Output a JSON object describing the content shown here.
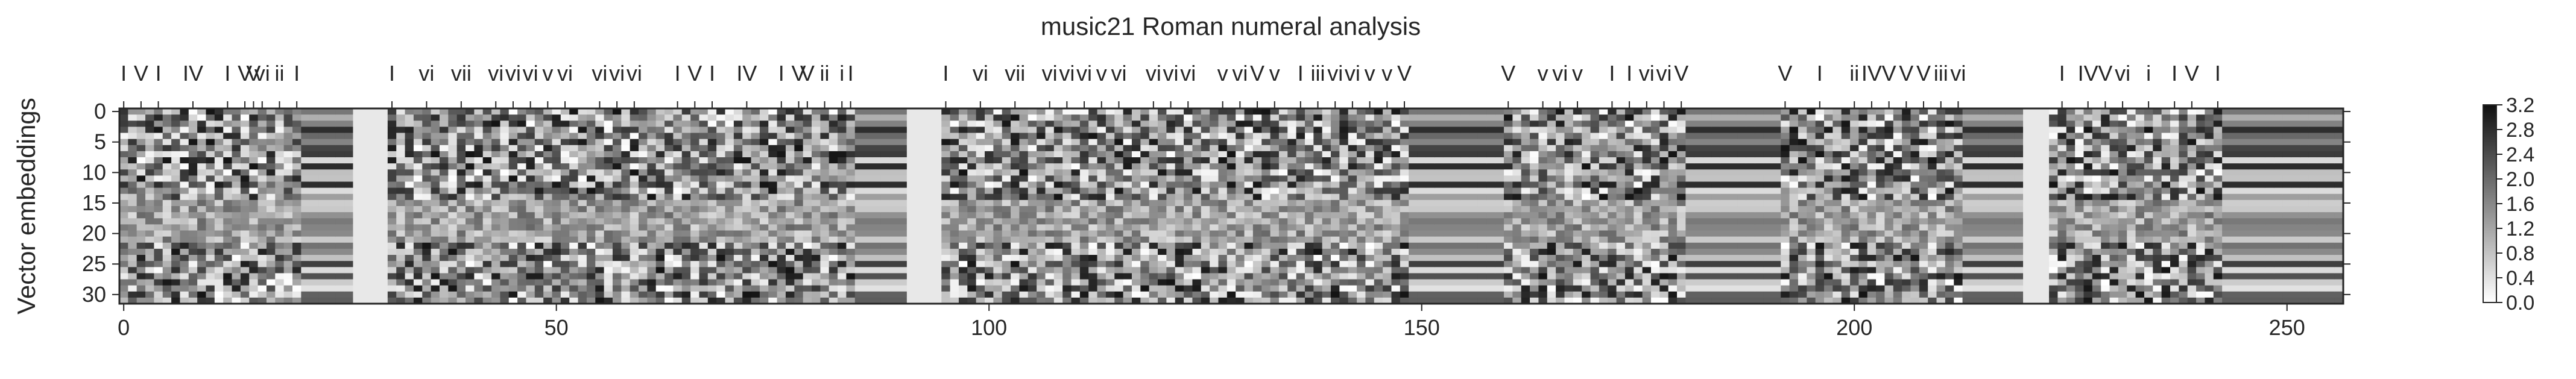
{
  "figure": {
    "title": "music21 Roman numeral analysis"
  },
  "chart_data": {
    "type": "heatmap",
    "title": "music21 Roman numeral analysis",
    "xlabel": "",
    "ylabel": "Vector embeddings",
    "x_ticks": [
      0,
      50,
      100,
      150,
      200,
      250
    ],
    "y_ticks": [
      0,
      5,
      10,
      15,
      20,
      25,
      30
    ],
    "xlim": [
      0,
      257
    ],
    "ylim": [
      0,
      32
    ],
    "rows": 32,
    "columns": 257,
    "colormap": "Greys",
    "colorbar": {
      "range": [
        0.0,
        3.2
      ],
      "ticks": [
        "0.0",
        "0.4",
        "0.8",
        "1.2",
        "1.6",
        "2.0",
        "2.4",
        "2.8",
        "3.2"
      ]
    },
    "top_labels": [
      {
        "x": 0,
        "label": "I"
      },
      {
        "x": 2,
        "label": "V"
      },
      {
        "x": 4,
        "label": "I"
      },
      {
        "x": 8,
        "label": "IV"
      },
      {
        "x": 12,
        "label": "I"
      },
      {
        "x": 14,
        "label": "V"
      },
      {
        "x": 15,
        "label": "V"
      },
      {
        "x": 16,
        "label": "vi"
      },
      {
        "x": 18,
        "label": "ii"
      },
      {
        "x": 20,
        "label": "I"
      },
      {
        "x": 31,
        "label": "I"
      },
      {
        "x": 35,
        "label": "vi"
      },
      {
        "x": 39,
        "label": "vii"
      },
      {
        "x": 43,
        "label": "vi"
      },
      {
        "x": 45,
        "label": "vi"
      },
      {
        "x": 47,
        "label": "vi"
      },
      {
        "x": 49,
        "label": "v"
      },
      {
        "x": 51,
        "label": "vi"
      },
      {
        "x": 55,
        "label": "vi"
      },
      {
        "x": 57,
        "label": "vi"
      },
      {
        "x": 59,
        "label": "vi"
      },
      {
        "x": 64,
        "label": "I"
      },
      {
        "x": 66,
        "label": "V"
      },
      {
        "x": 68,
        "label": "I"
      },
      {
        "x": 72,
        "label": "IV"
      },
      {
        "x": 76,
        "label": "I"
      },
      {
        "x": 78,
        "label": "V"
      },
      {
        "x": 79,
        "label": "V"
      },
      {
        "x": 81,
        "label": "ii"
      },
      {
        "x": 83,
        "label": "i"
      },
      {
        "x": 84,
        "label": "I"
      },
      {
        "x": 95,
        "label": "I"
      },
      {
        "x": 99,
        "label": "vi"
      },
      {
        "x": 103,
        "label": "vii"
      },
      {
        "x": 107,
        "label": "vi"
      },
      {
        "x": 109,
        "label": "vi"
      },
      {
        "x": 111,
        "label": "vi"
      },
      {
        "x": 113,
        "label": "v"
      },
      {
        "x": 115,
        "label": "vi"
      },
      {
        "x": 119,
        "label": "vi"
      },
      {
        "x": 121,
        "label": "vi"
      },
      {
        "x": 123,
        "label": "vi"
      },
      {
        "x": 127,
        "label": "v"
      },
      {
        "x": 129,
        "label": "vi"
      },
      {
        "x": 131,
        "label": "V"
      },
      {
        "x": 133,
        "label": "v"
      },
      {
        "x": 136,
        "label": "I"
      },
      {
        "x": 138,
        "label": "iii"
      },
      {
        "x": 140,
        "label": "vi"
      },
      {
        "x": 142,
        "label": "vi"
      },
      {
        "x": 144,
        "label": "v"
      },
      {
        "x": 146,
        "label": "v"
      },
      {
        "x": 148,
        "label": "V"
      },
      {
        "x": 160,
        "label": "V"
      },
      {
        "x": 164,
        "label": "v"
      },
      {
        "x": 166,
        "label": "vi"
      },
      {
        "x": 168,
        "label": "v"
      },
      {
        "x": 172,
        "label": "I"
      },
      {
        "x": 174,
        "label": "I"
      },
      {
        "x": 176,
        "label": "vi"
      },
      {
        "x": 178,
        "label": "vi"
      },
      {
        "x": 180,
        "label": "V"
      },
      {
        "x": 192,
        "label": "V"
      },
      {
        "x": 196,
        "label": "I"
      },
      {
        "x": 200,
        "label": "ii"
      },
      {
        "x": 202,
        "label": "IV"
      },
      {
        "x": 204,
        "label": "V"
      },
      {
        "x": 206,
        "label": "V"
      },
      {
        "x": 208,
        "label": "V"
      },
      {
        "x": 210,
        "label": "iii"
      },
      {
        "x": 212,
        "label": "vi"
      },
      {
        "x": 224,
        "label": "I"
      },
      {
        "x": 227,
        "label": "IV"
      },
      {
        "x": 229,
        "label": "V"
      },
      {
        "x": 231,
        "label": "vi"
      },
      {
        "x": 234,
        "label": "i"
      },
      {
        "x": 237,
        "label": "I"
      },
      {
        "x": 239,
        "label": "V"
      },
      {
        "x": 242,
        "label": "I"
      }
    ]
  }
}
